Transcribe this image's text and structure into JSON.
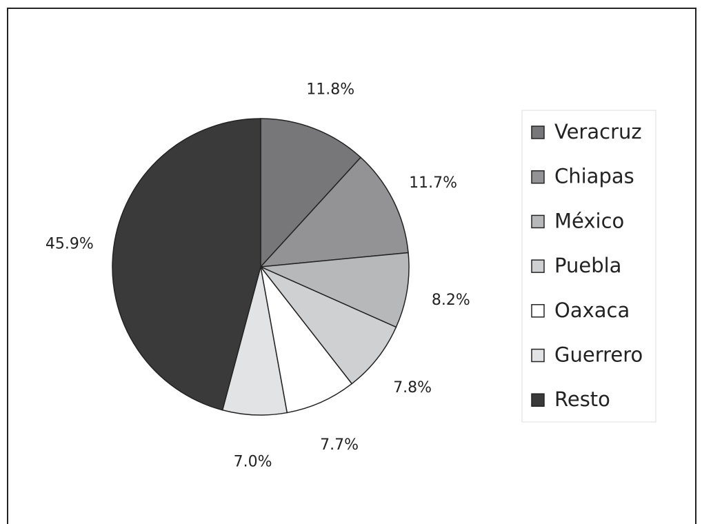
{
  "chart_data": {
    "type": "pie",
    "categories": [
      "Veracruz",
      "Chiapas",
      "México",
      "Puebla",
      "Oaxaca",
      "Guerrero",
      "Resto"
    ],
    "values": [
      11.8,
      11.7,
      8.2,
      7.8,
      7.7,
      7.0,
      45.9
    ],
    "value_labels": [
      "11.8%",
      "11.7%",
      "8.2%",
      "7.8%",
      "7.7%",
      "7.0%",
      "45.9%"
    ],
    "colors": [
      "#77777a",
      "#939396",
      "#b7b8ba",
      "#cfd0d2",
      "#ffffff",
      "#e2e3e4",
      "#3a3a3a"
    ],
    "legend": "right"
  }
}
